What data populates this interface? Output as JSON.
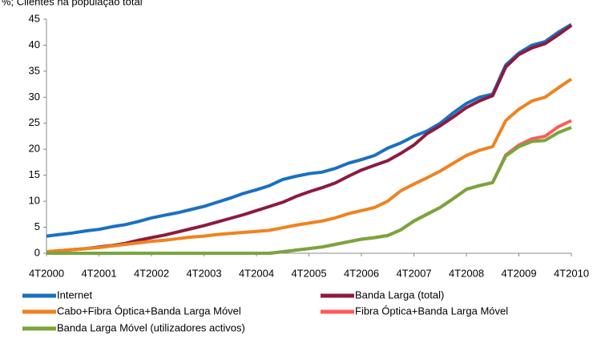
{
  "chart_data": {
    "type": "line",
    "title": "%; Clientes na população total",
    "categories": [
      "4T2000",
      null,
      null,
      null,
      "4T2001",
      null,
      null,
      null,
      "4T2002",
      null,
      null,
      null,
      "4T2003",
      null,
      null,
      null,
      "4T2004",
      null,
      null,
      null,
      "4T2005",
      null,
      null,
      null,
      "4T2006",
      null,
      null,
      null,
      "4T2007",
      null,
      null,
      null,
      "4T2008",
      null,
      null,
      null,
      "4T2009",
      null,
      null,
      null,
      "4T2010"
    ],
    "ylim": [
      0,
      45
    ],
    "yticks": [
      0,
      5,
      10,
      15,
      20,
      25,
      30,
      35,
      40,
      45
    ],
    "grid": false,
    "series": [
      {
        "name": "Internet",
        "color": "#1a70c2",
        "values": [
          3.3,
          3.6,
          3.9,
          4.3,
          4.6,
          5.1,
          5.5,
          6.1,
          6.8,
          7.3,
          7.8,
          8.4,
          9.0,
          9.8,
          10.6,
          11.5,
          12.2,
          13.0,
          14.2,
          14.8,
          15.3,
          15.6,
          16.3,
          17.3,
          18.0,
          18.8,
          20.2,
          21.2,
          22.5,
          23.5,
          25.0,
          27.0,
          28.8,
          30.0,
          30.6,
          36.2,
          38.5,
          40.0,
          40.7,
          42.5,
          44.0
        ]
      },
      {
        "name": "Banda Larga (total)",
        "color": "#8c1b40",
        "values": [
          0.3,
          0.5,
          0.7,
          0.9,
          1.2,
          1.5,
          1.9,
          2.5,
          3.0,
          3.5,
          4.1,
          4.7,
          5.3,
          6.0,
          6.7,
          7.4,
          8.2,
          9.0,
          9.8,
          10.9,
          11.8,
          12.6,
          13.5,
          14.8,
          16.0,
          16.9,
          17.8,
          19.2,
          20.8,
          23.0,
          24.5,
          26.2,
          28.0,
          29.3,
          30.3,
          35.8,
          38.2,
          39.5,
          40.3,
          42.0,
          43.8
        ]
      },
      {
        "name": "Cabo+Fibra Óptica+Banda Larga Móvel",
        "color": "#f0821e",
        "values": [
          0.3,
          0.5,
          0.7,
          0.9,
          1.1,
          1.4,
          1.7,
          2.0,
          2.3,
          2.5,
          2.8,
          3.1,
          3.3,
          3.6,
          3.8,
          4.0,
          4.2,
          4.4,
          4.9,
          5.4,
          5.8,
          6.2,
          6.8,
          7.6,
          8.2,
          8.8,
          10.0,
          12.0,
          13.3,
          14.5,
          15.8,
          17.3,
          18.8,
          19.8,
          20.5,
          25.5,
          27.7,
          29.3,
          30.0,
          31.8,
          33.5
        ]
      },
      {
        "name": "Fibra Óptica+Banda Larga Móvel",
        "color": "#ff5a5a",
        "values": [
          0,
          0,
          0,
          0,
          0,
          0,
          0,
          0,
          0,
          0,
          0,
          0,
          0,
          0,
          0,
          0,
          0,
          0,
          0.3,
          0.6,
          0.9,
          1.2,
          1.7,
          2.2,
          2.7,
          3.0,
          3.4,
          4.5,
          6.2,
          7.5,
          8.8,
          10.5,
          12.3,
          13.0,
          13.6,
          18.9,
          20.8,
          22.0,
          22.5,
          24.3,
          25.5
        ]
      },
      {
        "name": "Banda Larga Móvel (utilizadores activos)",
        "color": "#78a63c",
        "values": [
          0,
          0,
          0,
          0,
          0,
          0,
          0,
          0,
          0,
          0,
          0,
          0,
          0,
          0,
          0,
          0,
          0,
          0,
          0.3,
          0.6,
          0.9,
          1.2,
          1.7,
          2.2,
          2.7,
          3.0,
          3.4,
          4.5,
          6.2,
          7.5,
          8.8,
          10.5,
          12.3,
          13.0,
          13.6,
          18.7,
          20.5,
          21.5,
          21.7,
          23.2,
          24.2
        ]
      }
    ]
  }
}
